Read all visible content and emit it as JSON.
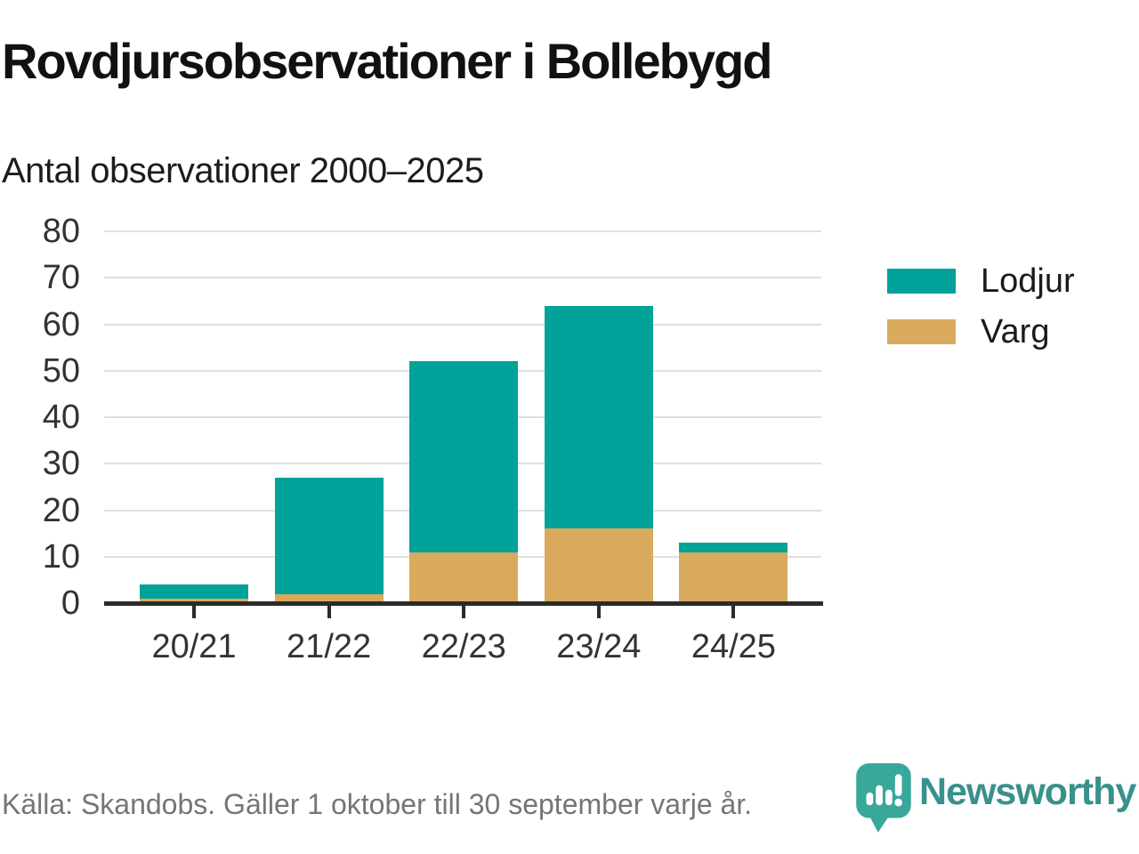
{
  "header": {
    "title": "Rovdjursobservationer i Bollebygd",
    "subtitle": "Antal observationer 2000–2025"
  },
  "chart_data": {
    "type": "bar",
    "stacked": true,
    "title": "Rovdjursobservationer i Bollebygd",
    "subtitle": "Antal observationer 2000–2025",
    "categories": [
      "20/21",
      "21/22",
      "22/23",
      "23/24",
      "24/25"
    ],
    "series": [
      {
        "name": "Lodjur",
        "color": "#00a29a",
        "values": [
          3,
          25,
          41,
          48,
          2
        ]
      },
      {
        "name": "Varg",
        "color": "#d9aa5c",
        "values": [
          1,
          2,
          11,
          16,
          11
        ]
      }
    ],
    "stack_bottom_to_top": [
      "Varg",
      "Lodjur"
    ],
    "totals": [
      4,
      27,
      52,
      64,
      13
    ],
    "xlabel": "",
    "ylabel": "",
    "ylim": [
      0,
      80
    ],
    "ytick_step": 10,
    "yticks": [
      0,
      10,
      20,
      30,
      40,
      50,
      60,
      70,
      80
    ],
    "grid": "horizontal",
    "gridline_color": "#e0e0e0",
    "axis_color": "#2b2b2b",
    "legend_position": "right"
  },
  "footer": {
    "source": "Källa: Skandobs. Gäller 1 oktober till 30 september varje år.",
    "brand": "Newsworthy",
    "brand_color": "#38918a",
    "logo_color": "#3aa79b"
  }
}
